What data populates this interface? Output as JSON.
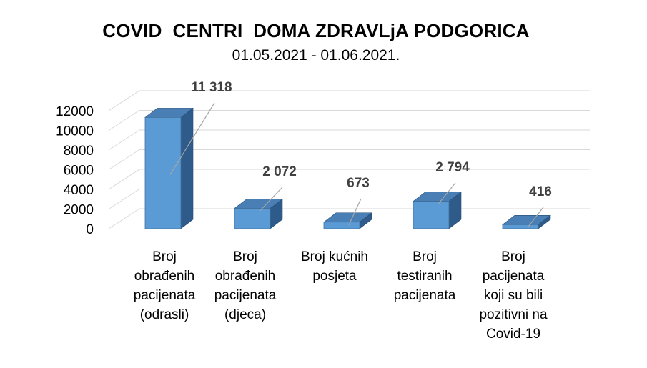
{
  "chart_data": {
    "type": "bar",
    "title": "COVID  CENTRI  DOMA ZDRAVLjA PODGORICA",
    "subtitle": "01.05.2021 - 01.06.2021.",
    "categories": [
      [
        "Broj",
        "obrađenih",
        "pacijenata",
        "(odrasli)"
      ],
      [
        "Broj",
        "obrađenih",
        "pacijenata",
        "(djeca)"
      ],
      [
        "Broj kućnih",
        "posjeta"
      ],
      [
        "Broj",
        "testiranih",
        "pacijenata"
      ],
      [
        "Broj",
        "pacijenata",
        "koji su bili",
        "pozitivni na",
        "Covid-19"
      ]
    ],
    "values": [
      11318,
      2072,
      673,
      2794,
      416
    ],
    "data_labels": [
      "11 318",
      "2 072",
      "673",
      "2 794",
      "416"
    ],
    "y_ticks": [
      "0",
      "2000",
      "4000",
      "6000",
      "8000",
      "10000",
      "12000"
    ],
    "ylim": [
      0,
      12000
    ],
    "grid": true,
    "style": "3d-column",
    "colors": {
      "bar_front": "#5b9bd5",
      "bar_side": "#2e5b8a",
      "bar_top": "#4a7fb5",
      "grid": "#d9d9d9",
      "label": "#404040",
      "leader": "#a6a6a6"
    }
  }
}
